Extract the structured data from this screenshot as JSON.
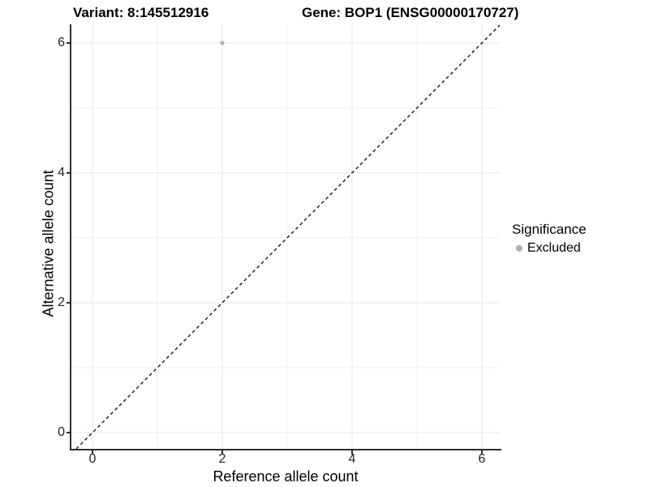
{
  "chart_data": {
    "type": "scatter",
    "titles": {
      "left": "Variant: 8:145512916",
      "right": "Gene: BOP1 (ENSG00000170727)"
    },
    "xlabel": "Reference allele count",
    "ylabel": "Alternative allele count",
    "x_ticks": [
      0,
      2,
      4,
      6
    ],
    "y_ticks": [
      0,
      2,
      4,
      6
    ],
    "x_minor_gridlines": [
      1,
      3,
      5
    ],
    "y_minor_gridlines": [
      1,
      3,
      5
    ],
    "xlim": [
      -0.325,
      6.275
    ],
    "ylim": [
      -0.25,
      6.2875
    ],
    "grid": "on",
    "points": [
      {
        "x": 2,
        "y": 6,
        "series": "Excluded"
      }
    ],
    "reference_line": {
      "kind": "identity y=x",
      "style": "dashed",
      "color": "#000000"
    },
    "legend": {
      "title": "Significance",
      "position": "right",
      "entries": [
        {
          "label": "Excluded",
          "color": "#b0b0b0"
        }
      ]
    },
    "colors": {
      "point": "#b0b0b0",
      "grid_major": "#e7e7e7",
      "grid_minor": "#f2f2f2",
      "axis_line": "#2e2e2e",
      "tick_text": "#262626"
    }
  }
}
